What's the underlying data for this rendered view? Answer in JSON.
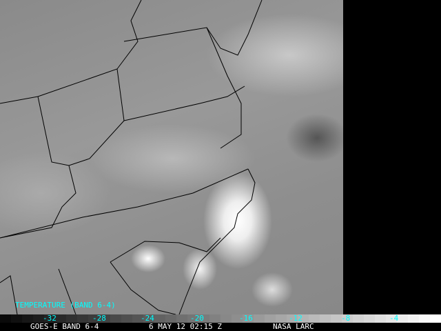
{
  "legend": {
    "title": "TEMPERATURE (BAND 6-4)",
    "ticks": [
      "-32",
      "-28",
      "-24",
      "-20",
      "-16",
      "-12",
      "-8",
      "-4"
    ],
    "text_color": "#00ffff"
  },
  "footer": {
    "satellite": "GOES-E BAND 6-4",
    "datetime": "6 MAY 12 02:15 Z",
    "source": "NASA LARC"
  }
}
